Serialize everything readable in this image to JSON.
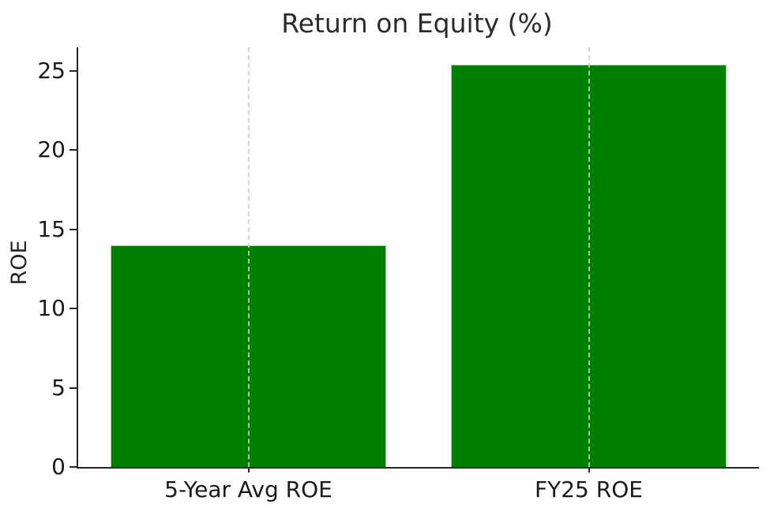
{
  "chart_data": {
    "type": "bar",
    "title": "Return on Equity (%)",
    "ylabel": "ROE",
    "xlabel": "",
    "categories": [
      "5-Year Avg ROE",
      "FY25 ROE"
    ],
    "values": [
      14.0,
      25.4
    ],
    "yticks": [
      0,
      5,
      10,
      15,
      20,
      25
    ],
    "ylim": [
      0,
      26.5
    ],
    "legend": "none",
    "grid": "vertical dashed line at each bar center",
    "bar_color": "#008000",
    "bar_edge_color": "#ffffff",
    "gridline_color": "#cdcdcd",
    "axis_color": "#262626",
    "text_color": "#1a1a1a",
    "background_color": "#ffffff"
  }
}
